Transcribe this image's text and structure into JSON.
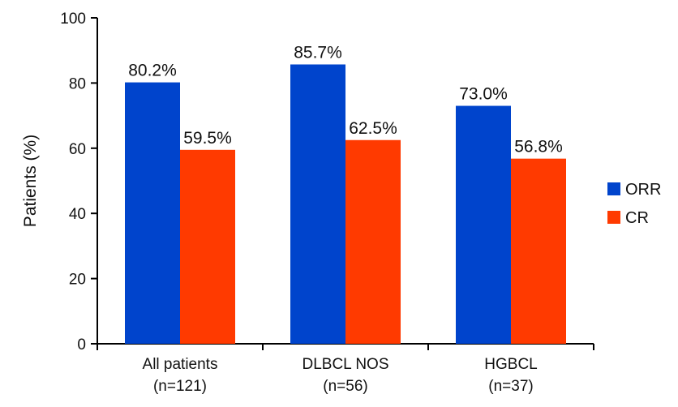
{
  "chart_data": {
    "type": "bar",
    "title": "",
    "xlabel": "",
    "ylabel": "Patients (%)",
    "ylim": [
      0,
      100
    ],
    "yticks": [
      0,
      20,
      40,
      60,
      80,
      100
    ],
    "categories": [
      {
        "line1": "All patients",
        "line2": "(n=121)"
      },
      {
        "line1": "DLBCL NOS",
        "line2": "(n=56)"
      },
      {
        "line1": "HGBCL",
        "line2": "(n=37)"
      }
    ],
    "series": [
      {
        "name": "ORR",
        "color": "#0044cc",
        "values": [
          80.2,
          85.7,
          73.0
        ],
        "labels": [
          "80.2%",
          "85.7%",
          "73.0%"
        ]
      },
      {
        "name": "CR",
        "color": "#ff3a00",
        "values": [
          59.5,
          62.5,
          56.8
        ],
        "labels": [
          "59.5%",
          "62.5%",
          "56.8%"
        ]
      }
    ],
    "legend_position": "right",
    "grid": false
  }
}
